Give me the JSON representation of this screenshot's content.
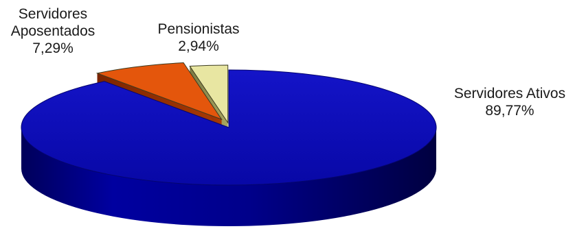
{
  "chart_data": {
    "type": "pie",
    "title": "",
    "slices": [
      {
        "label_lines": [
          "Servidores Ativos"
        ],
        "value": 89.77,
        "value_text": "89,77%",
        "color": "#0a0aa8"
      },
      {
        "label_lines": [
          "Servidores",
          "Aposentados"
        ],
        "value": 7.29,
        "value_text": "7,29%",
        "color": "#e4560c"
      },
      {
        "label_lines": [
          "Pensionistas"
        ],
        "value": 2.94,
        "value_text": "2,94%",
        "color": "#e8e6a2"
      }
    ],
    "style": "3d-exploded"
  }
}
